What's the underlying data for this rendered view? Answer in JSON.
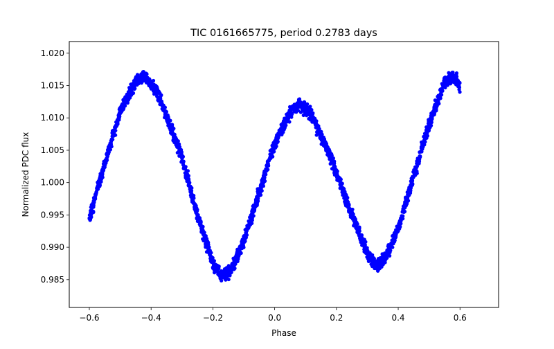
{
  "chart_data": {
    "type": "scatter",
    "title": "TIC 0161665775, period 0.2783 days",
    "xlabel": "Phase",
    "ylabel": "Normalized PDC flux",
    "xlim": [
      -0.665,
      0.725
    ],
    "ylim": [
      0.9807,
      1.0218
    ],
    "xticks": [
      -0.6,
      -0.4,
      -0.2,
      0.0,
      0.2,
      0.4,
      0.6
    ],
    "xtick_labels": [
      "−0.6",
      "−0.4",
      "−0.2",
      "0.0",
      "0.2",
      "0.4",
      "0.6"
    ],
    "yticks": [
      0.985,
      0.99,
      0.995,
      1.0,
      1.005,
      1.01,
      1.015,
      1.02
    ],
    "ytick_labels": [
      "0.985",
      "0.990",
      "0.995",
      "1.000",
      "1.005",
      "1.010",
      "1.015",
      "1.020"
    ],
    "grid": false,
    "marker_color": "#0000ff",
    "curve": {
      "x_range": [
        -0.6,
        0.6
      ],
      "points": [
        [
          -0.6,
          0.9945
        ],
        [
          -0.55,
          1.003
        ],
        [
          -0.5,
          1.011
        ],
        [
          -0.45,
          1.0158
        ],
        [
          -0.42,
          1.0165
        ],
        [
          -0.38,
          1.014
        ],
        [
          -0.3,
          1.004
        ],
        [
          -0.25,
          0.995
        ],
        [
          -0.2,
          0.9875
        ],
        [
          -0.17,
          0.9855
        ],
        [
          -0.14,
          0.9865
        ],
        [
          -0.1,
          0.991
        ],
        [
          -0.05,
          0.9985
        ],
        [
          0.0,
          1.006
        ],
        [
          0.05,
          1.011
        ],
        [
          0.08,
          1.012
        ],
        [
          0.12,
          1.0105
        ],
        [
          0.18,
          1.004
        ],
        [
          0.25,
          0.995
        ],
        [
          0.3,
          0.989
        ],
        [
          0.33,
          0.9873
        ],
        [
          0.36,
          0.9885
        ],
        [
          0.4,
          0.993
        ],
        [
          0.45,
          1.001
        ],
        [
          0.5,
          1.009
        ],
        [
          0.55,
          1.0155
        ],
        [
          0.58,
          1.0165
        ],
        [
          0.6,
          1.015
        ]
      ],
      "noise": 0.0011,
      "n_points": 2600
    }
  }
}
